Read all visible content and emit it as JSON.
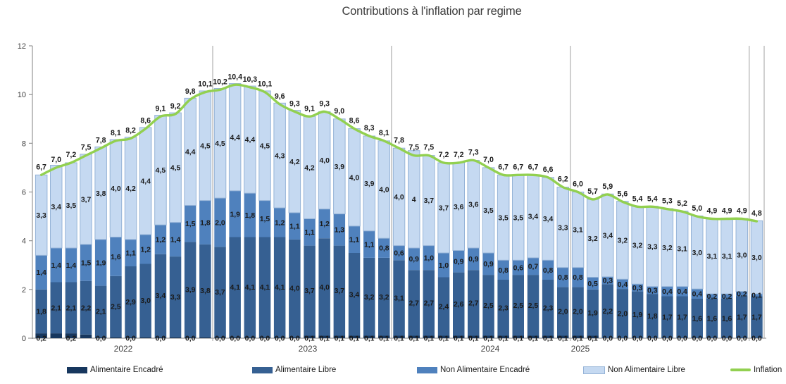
{
  "title": "Contributions à l'inflation par regime",
  "colors": {
    "alimentaire_encadre": "#17375E",
    "alimentaire_libre": "#366092",
    "non_alimentaire_encadre": "#4F81BD",
    "non_alimentaire_libre": "#C5D9F1",
    "non_alimentaire_libre_border": "#95B3D7",
    "inflation_line": "#92D050",
    "axis": "#808080",
    "separator": "#a0a0a0",
    "label_text": "#1a1a1a"
  },
  "legend": [
    {
      "label": "Alimentaire Encadré",
      "color": "#17375E",
      "marker": "rect"
    },
    {
      "label": "Alimentaire Libre",
      "color": "#366092",
      "marker": "rect"
    },
    {
      "label": "Non Alimentaire Encadré",
      "color": "#4F81BD",
      "marker": "rect"
    },
    {
      "label": "Non Alimentaire Libre",
      "color": "#C5D9F1",
      "marker": "rect",
      "border": "#95B3D7"
    },
    {
      "label": "Inflation",
      "color": "#92D050",
      "marker": "line"
    }
  ],
  "chart_data": {
    "type": "bar",
    "subtype": "stacked-bars-with-line",
    "title": "Contributions à l'inflation par regime",
    "ylim": [
      0,
      12
    ],
    "yticks": [
      0,
      2,
      4,
      6,
      8,
      10,
      12
    ],
    "grid": false,
    "legend_position": "bottom",
    "x_axis": {
      "unit": "month",
      "n_points": 49,
      "year_boundaries_after_index": [
        12,
        24,
        36,
        48
      ],
      "year_labels": [
        {
          "label": "2022",
          "x": 175
        },
        {
          "label": "2023",
          "x": 437
        },
        {
          "label": "2024",
          "x": 696
        },
        {
          "label": "2025",
          "x": 824
        }
      ]
    },
    "series": [
      {
        "name": "Alimentaire Encadré",
        "role": "stack",
        "color": "#17375E",
        "values": [
          0.2,
          0.2,
          0.2,
          0.15,
          0.05,
          0.05,
          0.05,
          0.05,
          0.05,
          0.05,
          0.05,
          0.05,
          0.05,
          0.05,
          0.05,
          0.05,
          0.05,
          0.05,
          0.1,
          0.1,
          0.1,
          0.1,
          0.1,
          0.1,
          0.1,
          0.1,
          0.1,
          0.1,
          0.1,
          0.1,
          0.1,
          0.1,
          0.1,
          0.1,
          0.1,
          0.1,
          0.1,
          0.1,
          0.02,
          0.02,
          0.02,
          0.02,
          0.02,
          0.02,
          0.02,
          0.02,
          0.02,
          0.02,
          0.02
        ],
        "labels": [
          "0,2",
          "",
          "0,2",
          "",
          "0,0",
          "",
          "0,0",
          "",
          "0,0",
          "",
          "0,0",
          "",
          "0,0",
          "0,0",
          "0,0",
          "0,0",
          "0,0",
          "0,0",
          "0,1",
          "0,1",
          "0,1",
          "0,1",
          "0,1",
          "0,1",
          "0,1",
          "0,1",
          "0,1",
          "0,1",
          "0,1",
          "0,1",
          "0,1",
          "0,1",
          "0,1",
          "0,1",
          "0,1",
          "0,1",
          "0,1",
          "0,1",
          "0,0",
          "0,0",
          "0,0",
          "0,0",
          "0,0",
          "0,0",
          "0,0",
          "0,0",
          "0,0",
          "0,0",
          "0,0"
        ]
      },
      {
        "name": "Alimentaire Libre",
        "role": "stack",
        "color": "#366092",
        "values": [
          1.8,
          2.1,
          2.1,
          2.2,
          2.1,
          2.5,
          2.9,
          3.0,
          3.4,
          3.3,
          3.9,
          3.8,
          3.7,
          4.1,
          4.1,
          4.1,
          4.1,
          4.0,
          3.7,
          4.0,
          3.7,
          3.4,
          3.2,
          3.2,
          3.1,
          2.7,
          2.7,
          2.4,
          2.6,
          2.7,
          2.5,
          2.3,
          2.5,
          2.5,
          2.3,
          2.0,
          2.0,
          1.9,
          2.2,
          2.0,
          1.9,
          1.8,
          1.7,
          1.7,
          1.6,
          1.6,
          1.6,
          1.7,
          1.7
        ],
        "labels": [
          "1,8",
          "2,1",
          "2,1",
          "2,2",
          "2,1",
          "2,5",
          "2,9",
          "3,0",
          "3,4",
          "3,3",
          "3,9",
          "3,8",
          "3,7",
          "4,1",
          "4,1",
          "4,1",
          "4,1",
          "4,0",
          "3,7",
          "4,0",
          "3,7",
          "3,4",
          "3,2",
          "3,2",
          "3,1",
          "2,7",
          "2,7",
          "2,4",
          "2,6",
          "2,7",
          "2,5",
          "2,3",
          "2,5",
          "2,5",
          "2,3",
          "2,0",
          "2,0",
          "1,9",
          "2,2",
          "2,0",
          "1,9",
          "1,8",
          "1,7",
          "1,7",
          "1,6",
          "1,6",
          "1,6",
          "1,7",
          "1,7"
        ]
      },
      {
        "name": "Non Alimentaire Encadré",
        "role": "stack",
        "color": "#4F81BD",
        "values": [
          1.4,
          1.4,
          1.4,
          1.5,
          1.9,
          1.6,
          1.1,
          1.2,
          1.2,
          1.4,
          1.5,
          1.8,
          2.0,
          1.9,
          1.8,
          1.5,
          1.2,
          1.1,
          1.1,
          1.2,
          1.3,
          1.1,
          1.1,
          0.8,
          0.6,
          0.9,
          1.0,
          1.0,
          0.9,
          0.9,
          0.9,
          0.8,
          0.6,
          0.7,
          0.8,
          0.8,
          0.8,
          0.5,
          0.3,
          0.4,
          0.3,
          0.3,
          0.4,
          0.4,
          0.4,
          0.2,
          0.2,
          0.2,
          0.1
        ],
        "labels": [
          "1,4",
          "1,4",
          "1,4",
          "1,5",
          "1,9",
          "1,6",
          "1,1",
          "1,2",
          "1,2",
          "1,4",
          "1,5",
          "1,8",
          "2,0",
          "1,9",
          "1,8",
          "1,5",
          "1,2",
          "1,1",
          "1,1",
          "1,2",
          "1,3",
          "1,1",
          "1,1",
          "0,8",
          "0,6",
          "0,9",
          "1,0",
          "1,0",
          "0,9",
          "0,9",
          "0,9",
          "0,8",
          "0,6",
          "0,7",
          "0,8",
          "0,8",
          "0,8",
          "0,5",
          "0,3",
          "0,4",
          "0,3",
          "0,3",
          "0,4",
          "0,4",
          "0,4",
          "0,2",
          "0,2",
          "0,2",
          "0,1"
        ]
      },
      {
        "name": "Non Alimentaire Libre",
        "role": "stack",
        "color": "#C5D9F1",
        "border": "#95B3D7",
        "values": [
          3.3,
          3.4,
          3.5,
          3.7,
          3.8,
          4.0,
          4.2,
          4.4,
          4.5,
          4.5,
          4.4,
          4.5,
          4.5,
          4.4,
          4.4,
          4.5,
          4.3,
          4.2,
          4.2,
          4.0,
          3.9,
          4.0,
          3.9,
          4.0,
          4.0,
          4.0,
          3.7,
          3.7,
          3.6,
          3.6,
          3.5,
          3.5,
          3.5,
          3.4,
          3.4,
          3.3,
          3.1,
          3.2,
          3.4,
          3.2,
          3.2,
          3.3,
          3.2,
          3.1,
          3.0,
          3.1,
          3.1,
          3.0,
          3.0
        ],
        "labels": [
          "3,3",
          "3,4",
          "3,5",
          "3,7",
          "3,8",
          "4,0",
          "4,2",
          "4,4",
          "4,5",
          "4,5",
          "4,4",
          "4,5",
          "4,5",
          "4,4",
          "4,4",
          "4,5",
          "4,3",
          "4,2",
          "4,2",
          "4,0",
          "3,9",
          "4,0",
          "3,9",
          "4,0",
          "4,0",
          "4",
          "3,7",
          "3,7",
          "3,6",
          "3,6",
          "3,5",
          "3,5",
          "3,5",
          "3,4",
          "3,4",
          "3,3",
          "3,1",
          "3,2",
          "3,4",
          "3,2",
          "3,2",
          "3,3",
          "3,2",
          "3,1",
          "3,0",
          "3,1",
          "3,1",
          "3,0",
          "3,0"
        ]
      },
      {
        "name": "Inflation",
        "role": "line",
        "color": "#92D050",
        "values": [
          6.7,
          7.0,
          7.2,
          7.5,
          7.8,
          8.1,
          8.2,
          8.6,
          9.1,
          9.2,
          9.8,
          10.1,
          10.2,
          10.4,
          10.3,
          10.1,
          9.6,
          9.3,
          9.1,
          9.3,
          9.0,
          8.6,
          8.3,
          8.1,
          7.8,
          7.5,
          7.5,
          7.2,
          7.2,
          7.3,
          7.0,
          6.7,
          6.7,
          6.7,
          6.6,
          6.2,
          6.0,
          5.7,
          5.9,
          5.6,
          5.4,
          5.4,
          5.3,
          5.2,
          5.0,
          4.9,
          4.9,
          4.9,
          4.8
        ],
        "labels": [
          "6,7",
          "7,0",
          "7,2",
          "7,5",
          "7,8",
          "8,1",
          "8,2",
          "8,6",
          "9,1",
          "9,2",
          "9,8",
          "10,1",
          "10,2",
          "10,4",
          "10,3",
          "10,1",
          "9,6",
          "9,3",
          "9,1",
          "9,3",
          "9,0",
          "8,6",
          "8,3",
          "8,1",
          "7,8",
          "7,5",
          "7,5",
          "7,2",
          "7,2",
          "7,3",
          "7,0",
          "6,7",
          "6,7",
          "6,7",
          "6,6",
          "6,2",
          "6,0",
          "5,7",
          "5,9",
          "5,6",
          "5,4",
          "5,4",
          "5,3",
          "5,2",
          "5,0",
          "4,9",
          "4,9",
          "4,9",
          "4,8"
        ]
      }
    ]
  }
}
